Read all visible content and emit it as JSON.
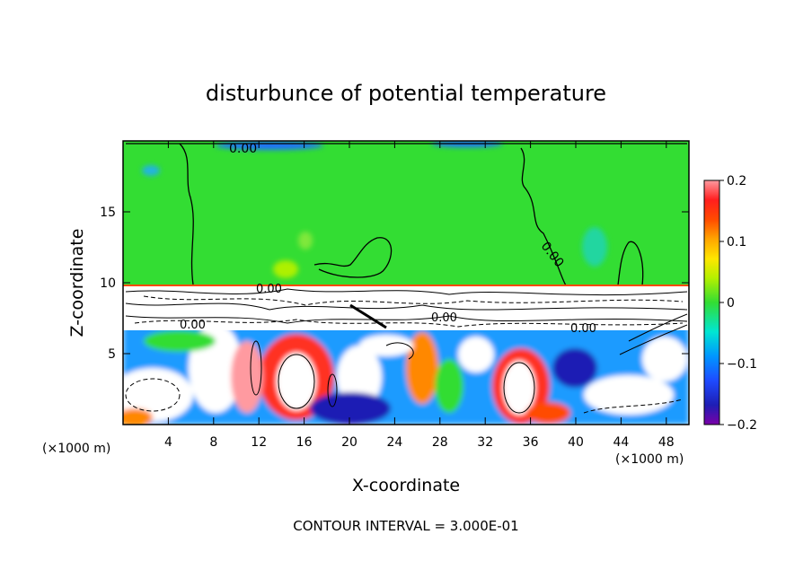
{
  "chart_data": {
    "type": "heatmap",
    "title": "disturbunce of potential temperature",
    "xlabel": "X-coordinate",
    "ylabel": "Z-coordinate",
    "x_unit": "(×1000 m)",
    "z_unit": "(×1000 m)",
    "xlim": [
      0,
      50
    ],
    "ylim": [
      0,
      20
    ],
    "x_ticks": [
      4,
      8,
      12,
      16,
      20,
      24,
      28,
      32,
      36,
      40,
      44,
      48
    ],
    "y_ticks": [
      5,
      10,
      15
    ],
    "colorbar": {
      "range": [
        -0.2,
        0.2
      ],
      "tick_values": [
        -0.2,
        -0.1,
        0,
        0.1,
        0.2
      ],
      "tick_labels": [
        "−0.2",
        "−0.1",
        "0",
        "0.1",
        "0.2"
      ]
    },
    "contour_label": "0.00",
    "footer": "CONTOUR INTERVAL = 3.000E-01",
    "regions": [
      {
        "x_range": [
          0,
          50
        ],
        "z_range": [
          10,
          20
        ],
        "value": 0.0
      },
      {
        "x_range": [
          0,
          50
        ],
        "z_range": [
          6.5,
          10
        ],
        "value": "contoured, near 0"
      },
      {
        "x_range": [
          0,
          50
        ],
        "z_range": [
          0,
          6.5
        ],
        "value": "mixed -0.2 to 0.2"
      }
    ],
    "features": [
      {
        "x": 14.5,
        "z": 3.0,
        "value": 0.2
      },
      {
        "x": 35.0,
        "z": 3.0,
        "value": 0.2
      },
      {
        "x": 27.0,
        "z": 3.2,
        "value": 0.05
      },
      {
        "x": 17.5,
        "z": 1.5,
        "value": -0.15
      },
      {
        "x": 46.0,
        "z": 2.5,
        "value": -0.12
      },
      {
        "x": 3.0,
        "z": 4.0,
        "value": -0.1
      },
      {
        "x": 41.0,
        "z": 1.5,
        "value": -0.15
      },
      {
        "x": 22.0,
        "z": 4.5,
        "value": 0.08
      },
      {
        "x": 9.0,
        "z": 2.5,
        "value": 0.15
      },
      {
        "x": 44.0,
        "z": 12.5,
        "value": -0.03
      },
      {
        "x": 14.5,
        "z": 11.2,
        "value": 0.03
      }
    ]
  }
}
